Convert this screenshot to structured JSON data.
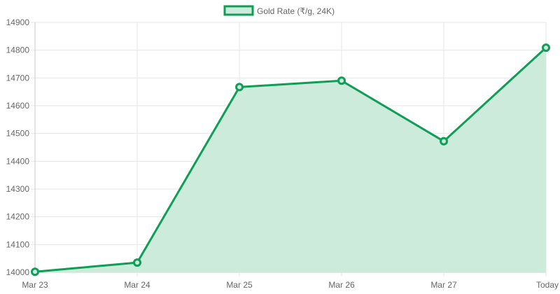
{
  "chart_data": {
    "type": "area",
    "categories": [
      "Mar 23",
      "Mar 24",
      "Mar 25",
      "Mar 26",
      "Mar 27",
      "Today"
    ],
    "series": [
      {
        "name": "Gold Rate (₹/g, 24K)",
        "values": [
          14002,
          14035,
          14667,
          14690,
          14472,
          14809
        ],
        "line_color": "#0f9d58",
        "fill_color": "#cdebdb"
      }
    ],
    "y_ticks": [
      "14000",
      "14100",
      "14200",
      "14300",
      "14400",
      "14500",
      "14600",
      "14700",
      "14800",
      "14900"
    ],
    "ylim": [
      14000,
      14900
    ],
    "grid": true,
    "legend_position": "top-center",
    "title": "",
    "xlabel": "",
    "ylabel": ""
  }
}
